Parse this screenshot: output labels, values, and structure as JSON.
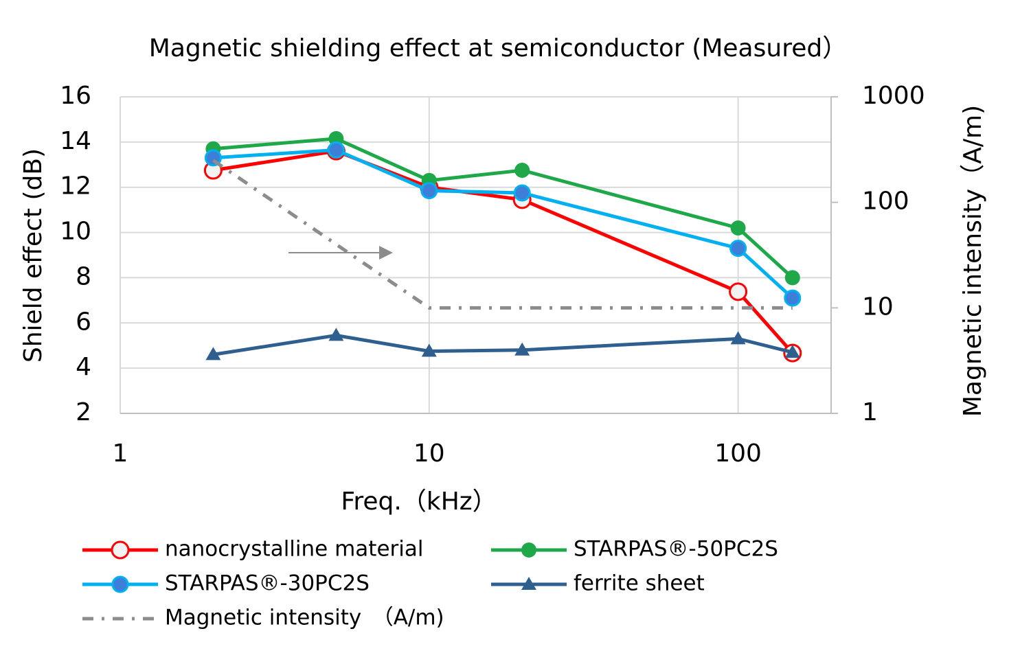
{
  "chart_data": {
    "type": "line",
    "title": "Magnetic shielding effect  at semiconductor (Measured）",
    "x_label": "Freq.（kHz）",
    "y_label": "Shield effect (dB)",
    "y2_label": "Magnetic intensity（A/m)",
    "x": [
      2,
      5,
      10,
      20,
      100,
      150
    ],
    "xlim": [
      1,
      200
    ],
    "xticks": [
      1,
      10,
      100
    ],
    "xscale": "log",
    "ylim": [
      2,
      16
    ],
    "yticks": [
      2,
      4,
      6,
      8,
      10,
      12,
      14,
      16
    ],
    "y2lim": [
      1,
      1000
    ],
    "y2ticks": [
      1,
      10,
      100,
      1000
    ],
    "y2scale": "log",
    "grid": true,
    "series": [
      {
        "name": "nanocrystalline material",
        "color": "#ff0000",
        "marker": "hollow-circle",
        "values": [
          12.75,
          13.6,
          12.0,
          11.45,
          7.38,
          4.67
        ]
      },
      {
        "name": "STARPAS®-50PC2S",
        "color": "#1fa84a",
        "marker": "circle",
        "values": [
          13.7,
          14.15,
          12.3,
          12.75,
          10.2,
          8.0
        ]
      },
      {
        "name": "STARPAS®-30PC2S",
        "color": "#00b0f0",
        "marker": "blue-circle",
        "values": [
          13.3,
          13.65,
          11.85,
          11.75,
          9.3,
          7.1
        ]
      },
      {
        "name": "ferrite sheet",
        "color": "#2f5f8f",
        "marker": "triangle",
        "values": [
          4.6,
          5.45,
          4.75,
          4.8,
          5.3,
          4.7
        ]
      },
      {
        "name": "Magnetic intensity　（A/m)",
        "color": "#8c8c8c",
        "marker": "none",
        "line_style": "dashdot",
        "axis": "y2",
        "values": [
          250,
          40,
          10,
          10,
          10,
          10
        ]
      }
    ]
  }
}
